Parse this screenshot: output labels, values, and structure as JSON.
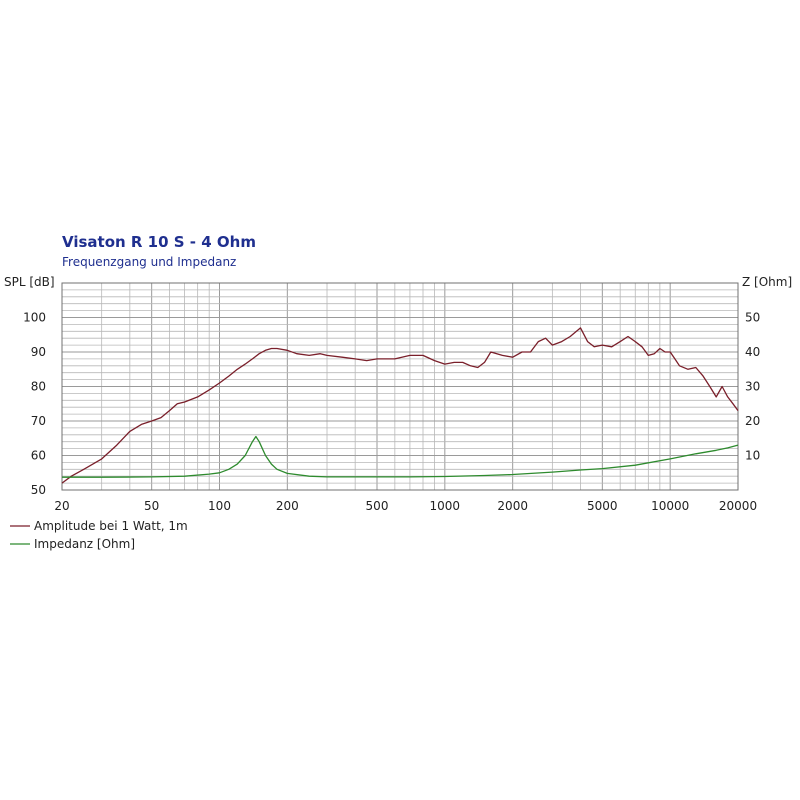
{
  "chart_data": {
    "type": "line",
    "title": "Visaton R 10 S - 4 Ohm",
    "subtitle": "Frequenzgang und Impedanz",
    "xscale": "log",
    "xlim": [
      20,
      20000
    ],
    "x_tick_labels": [
      "20",
      "50",
      "100",
      "200",
      "500",
      "1000",
      "2000",
      "5000",
      "10000",
      "20000"
    ],
    "x_ticks": [
      20,
      50,
      100,
      200,
      500,
      1000,
      2000,
      5000,
      10000,
      20000
    ],
    "ylabel_left": "SPL [dB]",
    "ylim_left": [
      50,
      110
    ],
    "y_ticks_left": [
      50,
      60,
      70,
      80,
      90,
      100
    ],
    "ylabel_right": "Z [Ohm]",
    "ylim_right": [
      0,
      60
    ],
    "y_ticks_right": [
      10,
      20,
      30,
      40,
      50
    ],
    "grid": true,
    "legend_position": "bottom-left",
    "colors": {
      "spl": "#7a1f2a",
      "impedance": "#2e8b2e",
      "grid": "#b8b8b8",
      "axis": "#707070",
      "title": "#1f2f8f"
    },
    "series": [
      {
        "name": "Amplitude bei 1 Watt, 1m",
        "axis": "left",
        "x": [
          20,
          22,
          25,
          30,
          35,
          40,
          45,
          50,
          55,
          60,
          65,
          70,
          80,
          90,
          100,
          110,
          120,
          130,
          140,
          150,
          160,
          170,
          180,
          200,
          220,
          250,
          280,
          300,
          350,
          400,
          450,
          500,
          550,
          600,
          700,
          800,
          900,
          1000,
          1100,
          1200,
          1300,
          1400,
          1500,
          1600,
          1800,
          2000,
          2200,
          2400,
          2600,
          2800,
          3000,
          3300,
          3600,
          4000,
          4300,
          4600,
          5000,
          5500,
          6000,
          6500,
          7000,
          7500,
          8000,
          8500,
          9000,
          9500,
          10000,
          10500,
          11000,
          12000,
          13000,
          14000,
          15000,
          16000,
          17000,
          18000,
          19000,
          20000
        ],
        "values": [
          52,
          54,
          56,
          59,
          63,
          67,
          69,
          70,
          71,
          73,
          75,
          75.5,
          77,
          79,
          81,
          83,
          85,
          86.5,
          88,
          89.5,
          90.5,
          91,
          91,
          90.5,
          89.5,
          89,
          89.5,
          89,
          88.5,
          88,
          87.5,
          88,
          88,
          88,
          89,
          89,
          87.5,
          86.5,
          87,
          87,
          86,
          85.5,
          87,
          90,
          89,
          88.5,
          90,
          90,
          93,
          94,
          92,
          93,
          94.5,
          97,
          93,
          91.5,
          92,
          91.5,
          93,
          94.5,
          93,
          91.5,
          89,
          89.5,
          91,
          90,
          90,
          88,
          86,
          85,
          85.5,
          83,
          80,
          77,
          80,
          77,
          75,
          73
        ]
      },
      {
        "name": "Impedanz [Ohm]",
        "axis": "right",
        "x": [
          20,
          30,
          50,
          70,
          90,
          100,
          110,
          120,
          130,
          140,
          145,
          150,
          160,
          170,
          180,
          200,
          250,
          300,
          400,
          500,
          700,
          1000,
          1500,
          2000,
          3000,
          4000,
          5000,
          7000,
          10000,
          13000,
          16000,
          18000,
          20000
        ],
        "values": [
          3.7,
          3.7,
          3.8,
          4,
          4.6,
          5,
          6,
          7.5,
          10,
          14,
          15.5,
          14,
          10,
          7.5,
          6,
          4.8,
          4,
          3.8,
          3.8,
          3.8,
          3.8,
          3.9,
          4.2,
          4.5,
          5.2,
          5.8,
          6.2,
          7.2,
          9,
          10.5,
          11.5,
          12.2,
          13
        ]
      }
    ]
  }
}
